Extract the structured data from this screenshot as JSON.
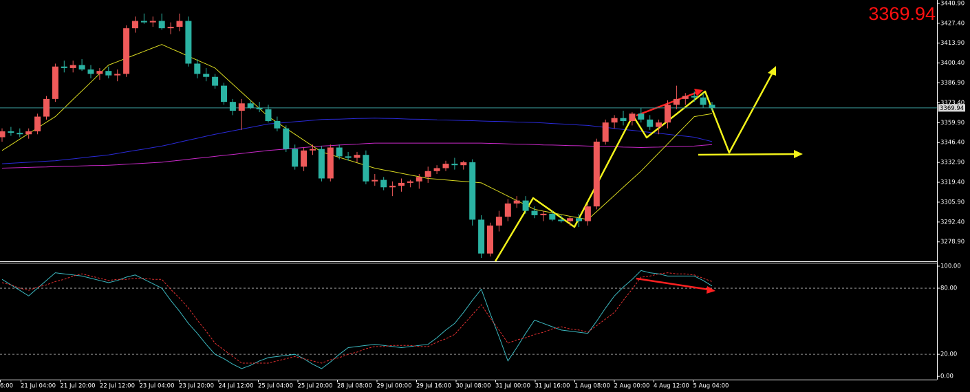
{
  "chart_data": [
    {
      "type": "candlestick",
      "up_color": "#ef5a5a",
      "down_color": "#2bb3a3",
      "ylim": [
        3265.7,
        3443.2
      ],
      "yticks": [
        {
          "value": 3440.9,
          "label": "3440.90"
        },
        {
          "value": 3427.4,
          "label": "3427.40"
        },
        {
          "value": 3413.9,
          "label": "3413.90"
        },
        {
          "value": 3400.4,
          "label": "3400.40"
        },
        {
          "value": 3386.9,
          "label": "3386.90"
        },
        {
          "value": 3373.4,
          "label": "3373.40"
        },
        {
          "value": 3359.9,
          "label": "3359.90"
        },
        {
          "value": 3346.4,
          "label": "3346.40"
        },
        {
          "value": 3332.9,
          "label": "3332.90"
        },
        {
          "value": 3319.4,
          "label": "3319.40"
        },
        {
          "value": 3305.9,
          "label": "3305.90"
        },
        {
          "value": 3292.4,
          "label": "3292.40"
        },
        {
          "value": 3278.9,
          "label": "3278.90"
        }
      ],
      "open": [
        3350,
        3354,
        3353,
        3352,
        3354,
        3364,
        3376,
        3398,
        3397,
        3399,
        3396,
        3393,
        3395,
        3392,
        3393,
        3424,
        3429,
        3428,
        3429,
        3424,
        3425,
        3429,
        3400,
        3393,
        3391,
        3385,
        3374,
        3368,
        3373,
        3370,
        3369,
        3361,
        3356,
        3342,
        3330,
        3341,
        3342,
        3322,
        3343,
        3337,
        3336,
        3338,
        3320,
        3321,
        3316,
        3317,
        3319,
        3320,
        3323,
        3327,
        3329,
        3332,
        3331,
        3333,
        3294,
        3271,
        3290,
        3296,
        3305,
        3307,
        3300,
        3297,
        3298,
        3294,
        3293,
        3295,
        3293,
        3303,
        3347,
        3360,
        3363,
        3361,
        3366,
        3362,
        3357,
        3360,
        3372,
        3376,
        3378,
        3377,
        3372
      ],
      "high": [
        3356,
        3357,
        3356,
        3356,
        3366,
        3378,
        3400,
        3402,
        3402,
        3403,
        3399,
        3397,
        3398,
        3396,
        3426,
        3432,
        3434,
        3432,
        3434,
        3428,
        3434,
        3432,
        3403,
        3397,
        3393,
        3387,
        3376,
        3376,
        3375,
        3374,
        3372,
        3364,
        3358,
        3345,
        3343,
        3345,
        3344,
        3345,
        3345,
        3340,
        3340,
        3341,
        3325,
        3323,
        3320,
        3322,
        3321,
        3325,
        3330,
        3331,
        3334,
        3336,
        3334,
        3335,
        3297,
        3292,
        3300,
        3308,
        3310,
        3310,
        3303,
        3300,
        3300,
        3297,
        3296,
        3298,
        3305,
        3349,
        3362,
        3365,
        3368,
        3367,
        3370,
        3365,
        3362,
        3375,
        3385,
        3380,
        3381,
        3380,
        3374
      ],
      "low": [
        3347,
        3351,
        3350,
        3349,
        3352,
        3362,
        3374,
        3394,
        3394,
        3395,
        3390,
        3389,
        3390,
        3388,
        3391,
        3421,
        3427,
        3425,
        3423,
        3420,
        3422,
        3398,
        3390,
        3388,
        3383,
        3372,
        3365,
        3355,
        3369,
        3367,
        3360,
        3354,
        3340,
        3328,
        3327,
        3338,
        3320,
        3320,
        3335,
        3334,
        3333,
        3318,
        3317,
        3314,
        3310,
        3313,
        3316,
        3315,
        3319,
        3325,
        3327,
        3328,
        3328,
        3290,
        3268,
        3269,
        3286,
        3293,
        3302,
        3298,
        3295,
        3293,
        3293,
        3292,
        3290,
        3289,
        3290,
        3301,
        3345,
        3356,
        3358,
        3358,
        3360,
        3355,
        3352,
        3356,
        3369,
        3372,
        3374,
        3370,
        3368
      ],
      "close": [
        3354,
        3353,
        3352,
        3354,
        3364,
        3376,
        3398,
        3397,
        3399,
        3396,
        3393,
        3395,
        3392,
        3393,
        3424,
        3429,
        3428,
        3429,
        3424,
        3425,
        3429,
        3400,
        3393,
        3391,
        3385,
        3374,
        3368,
        3373,
        3370,
        3369,
        3361,
        3356,
        3342,
        3330,
        3341,
        3342,
        3322,
        3343,
        3337,
        3336,
        3338,
        3320,
        3321,
        3316,
        3317,
        3319,
        3320,
        3323,
        3327,
        3329,
        3332,
        3331,
        3333,
        3294,
        3271,
        3290,
        3296,
        3305,
        3307,
        3300,
        3297,
        3298,
        3294,
        3293,
        3295,
        3293,
        3303,
        3347,
        3360,
        3363,
        3361,
        3366,
        3362,
        3357,
        3360,
        3372,
        3376,
        3378,
        3377,
        3372,
        3369.94
      ],
      "moving_averages": [
        {
          "color": "#2a2ad8",
          "values": [
            3332,
            3332.3,
            3332.7,
            3333,
            3333.3,
            3333.7,
            3334,
            3334.7,
            3335.3,
            3336,
            3336.7,
            3337.3,
            3338,
            3339,
            3340,
            3341,
            3342,
            3343,
            3344,
            3345.3,
            3346.7,
            3348,
            3349.3,
            3350.7,
            3352,
            3353.2,
            3354.3,
            3355.5,
            3356.7,
            3357.8,
            3359,
            3359.5,
            3360,
            3360.5,
            3361,
            3361.5,
            3362,
            3362.2,
            3362.3,
            3362.5,
            3362.7,
            3362.8,
            3363,
            3362.8,
            3362.7,
            3362.5,
            3362.3,
            3362.2,
            3362,
            3361.8,
            3361.7,
            3361.5,
            3361.3,
            3361.2,
            3361,
            3360.8,
            3360.7,
            3360.5,
            3360.3,
            3360.2,
            3360,
            3359.7,
            3359.3,
            3359,
            3358.7,
            3358.3,
            3358,
            3357.3,
            3356.7,
            3356,
            3355.3,
            3354.7,
            3354,
            3353.3,
            3352.7,
            3352,
            3351.3,
            3350.7,
            3350,
            3348.5,
            3347
          ]
        },
        {
          "color": "#c828c8",
          "values": [
            3329,
            3329.2,
            3329.3,
            3329.5,
            3329.7,
            3329.8,
            3330,
            3330.2,
            3330.3,
            3330.5,
            3330.7,
            3330.8,
            3331,
            3331.3,
            3331.7,
            3332,
            3332.3,
            3332.7,
            3333,
            3333.7,
            3334.3,
            3335,
            3335.7,
            3336.3,
            3337,
            3337.7,
            3338.3,
            3339,
            3339.7,
            3340.3,
            3341,
            3341.5,
            3342,
            3342.5,
            3343,
            3343.5,
            3344,
            3344.3,
            3344.7,
            3345,
            3345.3,
            3345.7,
            3346,
            3346,
            3346,
            3346,
            3346,
            3346,
            3346,
            3346,
            3346,
            3346,
            3346,
            3346,
            3346,
            3345.8,
            3345.7,
            3345.5,
            3345.3,
            3345.2,
            3345,
            3344.8,
            3344.7,
            3344.5,
            3344.3,
            3344.2,
            3344,
            3343.8,
            3343.7,
            3343.5,
            3343.3,
            3343.2,
            3343,
            3343.2,
            3343.3,
            3343.5,
            3343.7,
            3343.8,
            3344,
            3344.5,
            3345
          ]
        },
        {
          "color": "#d8d820",
          "values": [
            3341,
            3344.8,
            3348.7,
            3352.5,
            3356.3,
            3360.2,
            3364,
            3369.8,
            3375.7,
            3381.5,
            3387.3,
            3393.2,
            3399,
            3401.3,
            3403.7,
            3406,
            3408.3,
            3410.7,
            3413,
            3410.3,
            3407.7,
            3405,
            3402.3,
            3399.7,
            3397,
            3391.5,
            3386,
            3380.5,
            3375,
            3369.5,
            3364,
            3360,
            3356,
            3352,
            3348,
            3344,
            3340,
            3338.2,
            3336.3,
            3334.5,
            3332.7,
            3330.8,
            3329,
            3327.8,
            3326.7,
            3325.5,
            3324.3,
            3323.2,
            3322,
            3321.5,
            3321,
            3320.5,
            3320,
            3319.5,
            3319,
            3316,
            3313,
            3310,
            3307,
            3304,
            3301,
            3299.8,
            3298.7,
            3297.5,
            3296.3,
            3295.2,
            3294,
            3299.5,
            3305,
            3310.5,
            3316,
            3321.5,
            3327,
            3333.2,
            3339.3,
            3345.5,
            3351.7,
            3357.8,
            3364,
            3365,
            3366
          ]
        }
      ],
      "last_price": 3369.94,
      "last_price_color": "#3a9a9a"
    },
    {
      "type": "line",
      "ylim": [
        -3,
        102.5
      ],
      "yticks": [
        {
          "value": 100,
          "label": "100.00"
        },
        {
          "value": 80,
          "label": "80.00"
        },
        {
          "value": 20,
          "label": "20.00"
        },
        {
          "value": 0,
          "label": "0.00"
        }
      ],
      "grid": true,
      "series": [
        {
          "color": "#3cb8c0",
          "dashed": false,
          "values": [
            88,
            83,
            78,
            73,
            80,
            87,
            94,
            93,
            92,
            91,
            89,
            87,
            85,
            87,
            90,
            92,
            88,
            84,
            80,
            69,
            59,
            48,
            39,
            29,
            20,
            16,
            11,
            7,
            10,
            14,
            17,
            18,
            19,
            20,
            16,
            11,
            7,
            13,
            20,
            26,
            27,
            28,
            29,
            28,
            27,
            26,
            27,
            28,
            29,
            35,
            42,
            48,
            58,
            69,
            79,
            57,
            36,
            14,
            26,
            39,
            51,
            48,
            45,
            42,
            41,
            40,
            39,
            50,
            62,
            73,
            81,
            88,
            96,
            94,
            93,
            91,
            91,
            91,
            91,
            87,
            82
          ]
        },
        {
          "color": "#e03030",
          "dashed": true,
          "values": [
            85,
            83,
            80,
            78,
            81,
            83,
            86,
            88,
            91,
            93,
            91,
            89,
            87,
            88,
            88,
            89,
            89,
            88,
            88,
            79,
            71,
            62,
            51,
            41,
            30,
            24,
            18,
            12,
            12,
            12,
            12,
            14,
            16,
            18,
            16,
            14,
            12,
            15,
            17,
            20,
            22,
            25,
            27,
            27,
            28,
            28,
            28,
            27,
            27,
            31,
            34,
            38,
            47,
            56,
            65,
            53,
            42,
            30,
            33,
            35,
            38,
            40,
            43,
            45,
            43,
            42,
            40,
            46,
            52,
            58,
            69,
            79,
            90,
            91,
            93,
            94,
            93,
            93,
            92,
            89,
            86
          ]
        }
      ],
      "x_labels": [
        "6:00",
        "21 Jul 04:00",
        "21 Jul 20:00",
        "22 Jul 12:00",
        "23 Jul 04:00",
        "23 Jul 20:00",
        "24 Jul 12:00",
        "25 Jul 04:00",
        "25 Jul 20:00",
        "28 Jul 08:00",
        "29 Jul 00:00",
        "29 Jul 16:00",
        "30 Jul 08:00",
        "31 Jul 00:00",
        "31 Jul 16:00",
        "1 Aug 08:00",
        "2 Aug 00:00",
        "4 Aug 12:00",
        "5 Aug 04:00"
      ]
    }
  ]
}
